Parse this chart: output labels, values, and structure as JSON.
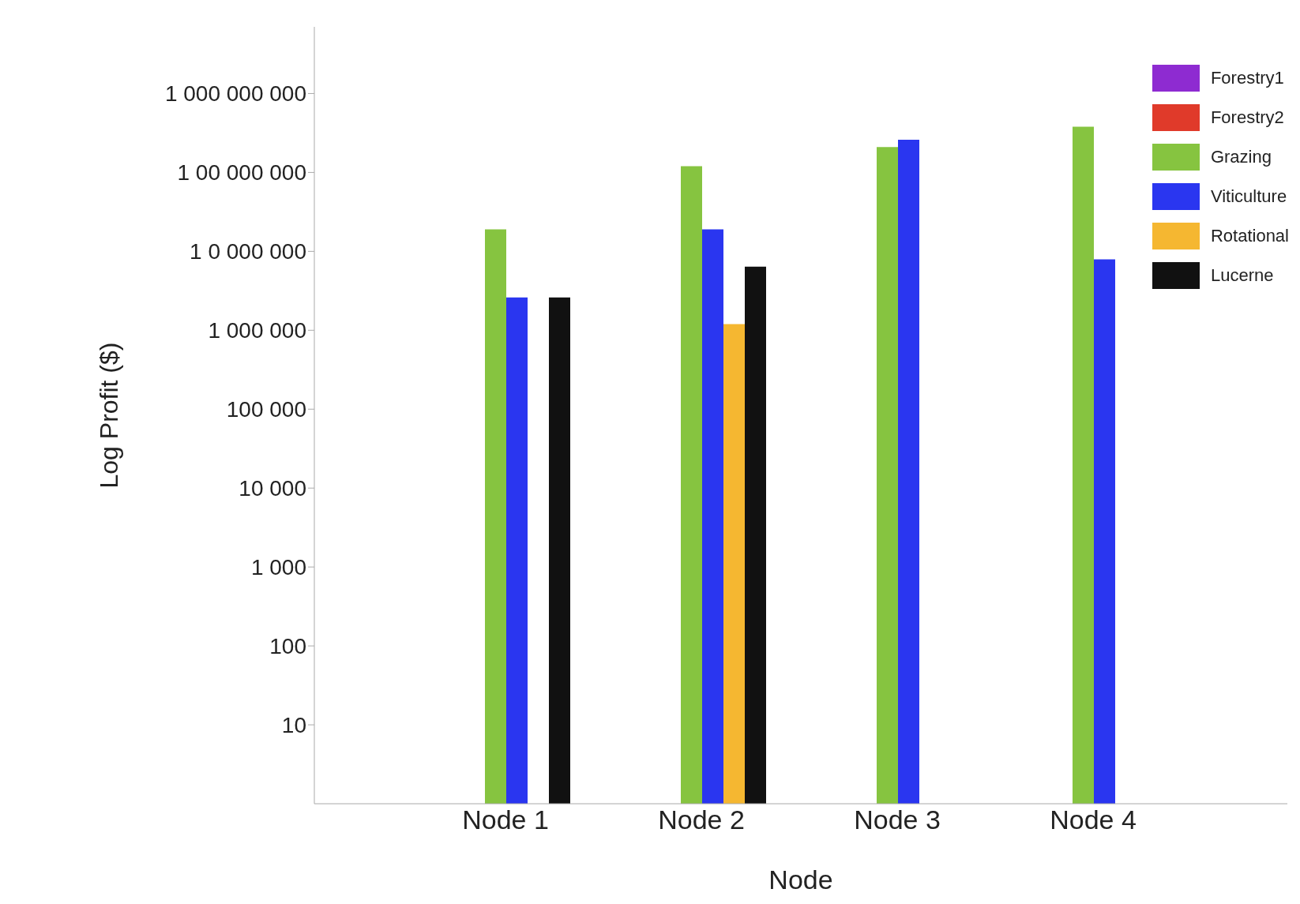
{
  "chart_data": {
    "type": "bar",
    "xlabel": "Node",
    "ylabel": "Log Profit ($)",
    "categories": [
      "Node 1",
      "Node 2",
      "Node 3",
      "Node 4"
    ],
    "series": [
      {
        "name": "Forestry1",
        "color": "#8e2bd1",
        "values": [
          null,
          null,
          null,
          null
        ]
      },
      {
        "name": "Forestry2",
        "color": "#e03a2a",
        "values": [
          null,
          null,
          null,
          null
        ]
      },
      {
        "name": "Grazing",
        "color": "#86c440",
        "values": [
          19000000,
          120000000,
          210000000,
          380000000
        ]
      },
      {
        "name": "Viticulture",
        "color": "#2a36f0",
        "values": [
          2600000,
          19000000,
          260000000,
          7900000
        ]
      },
      {
        "name": "Rotational",
        "color": "#f5b731",
        "values": [
          null,
          1200000,
          null,
          null
        ]
      },
      {
        "name": "Lucerne",
        "color": "#111111",
        "values": [
          2600000,
          6400000,
          null,
          null
        ]
      }
    ],
    "log": true,
    "ylim": [
      1,
      7000000000
    ],
    "yticks": [
      {
        "value": 10,
        "label": "10"
      },
      {
        "value": 100,
        "label": "100"
      },
      {
        "value": 1000,
        "label": "1 000"
      },
      {
        "value": 10000,
        "label": "10 000"
      },
      {
        "value": 100000,
        "label": "100 000"
      },
      {
        "value": 1000000,
        "label": "1 000 000"
      },
      {
        "value": 10000000,
        "label": "1 0 000 000"
      },
      {
        "value": 100000000,
        "label": "1 00 000 000"
      },
      {
        "value": 1000000000,
        "label": "1 000 000 000"
      }
    ],
    "grid": false,
    "legend": "top right"
  }
}
